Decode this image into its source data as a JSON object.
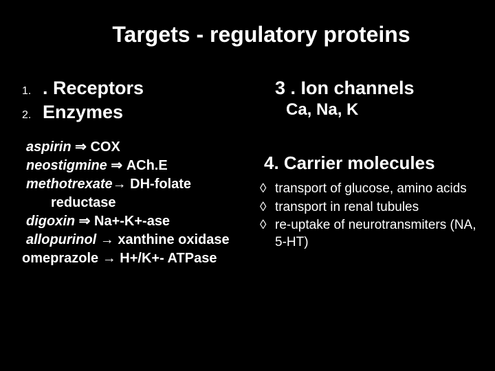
{
  "background_color": "#000000",
  "text_color": "#ffffff",
  "title": "Targets - regulatory proteins",
  "left": {
    "items": [
      {
        "num": "1.",
        "text": ". Receptors"
      },
      {
        "num": "2.",
        "text": "Enzymes"
      }
    ],
    "enzymes": [
      {
        "drug": "aspirin",
        "arrow": "⇒",
        "target": "COX",
        "drug_italic": true
      },
      {
        "drug": "neostigmine",
        "arrow": "⇒",
        "target": "ACh.E",
        "drug_italic": true
      },
      {
        "drug": "methotrexate",
        "arrow": "→",
        "target": "DH-folate",
        "cont": "reductase",
        "drug_italic": true
      },
      {
        "drug": "digoxin",
        "arrow": "⇒",
        "target": "Na+-K+-ase",
        "drug_italic": true
      },
      {
        "drug": "allopurinol",
        "arrow": "→",
        "target": "xanthine oxidase",
        "drug_italic": true
      },
      {
        "drug": "omeprazole",
        "arrow": "→",
        "target": "  H+/K+- ATPase",
        "drug_italic": false
      }
    ]
  },
  "right": {
    "ion_head": "3 . Ion channels",
    "ion_sub": "Ca, Na, K",
    "carrier_head": "4. Carrier molecules",
    "bullets": [
      "transport of glucose, amino acids",
      "transport in renal tubules",
      "re-uptake of neurotransmiters (NA, 5-HT)"
    ],
    "bullet_marker": "◊"
  }
}
